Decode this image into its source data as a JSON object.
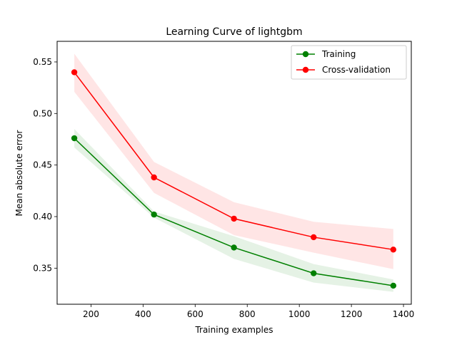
{
  "chart_data": {
    "type": "line",
    "title": "Learning Curve of lightgbm",
    "xlabel": "Training examples",
    "ylabel": "Mean absolute error",
    "xlim": [
      70,
      1430
    ],
    "ylim": [
      0.315,
      0.57
    ],
    "xticks": [
      200,
      400,
      600,
      800,
      1000,
      1200,
      1400
    ],
    "yticks": [
      0.35,
      0.4,
      0.45,
      0.5,
      0.55
    ],
    "ytick_labels": [
      "0.35",
      "0.40",
      "0.45",
      "0.50",
      "0.55"
    ],
    "grid": false,
    "legend": "top-right",
    "x": [
      136,
      442,
      749,
      1055,
      1361
    ],
    "series": [
      {
        "name": "Training",
        "color": "#008000",
        "band_color": "#008000",
        "values": [
          0.476,
          0.402,
          0.37,
          0.345,
          0.333
        ],
        "lower": [
          0.467,
          0.399,
          0.359,
          0.336,
          0.327
        ],
        "upper": [
          0.485,
          0.405,
          0.381,
          0.354,
          0.339
        ]
      },
      {
        "name": "Cross-validation",
        "color": "#ff0000",
        "band_color": "#ff0000",
        "values": [
          0.54,
          0.438,
          0.398,
          0.38,
          0.368
        ],
        "lower": [
          0.521,
          0.423,
          0.382,
          0.365,
          0.349
        ],
        "upper": [
          0.558,
          0.453,
          0.414,
          0.395,
          0.388
        ]
      }
    ]
  }
}
